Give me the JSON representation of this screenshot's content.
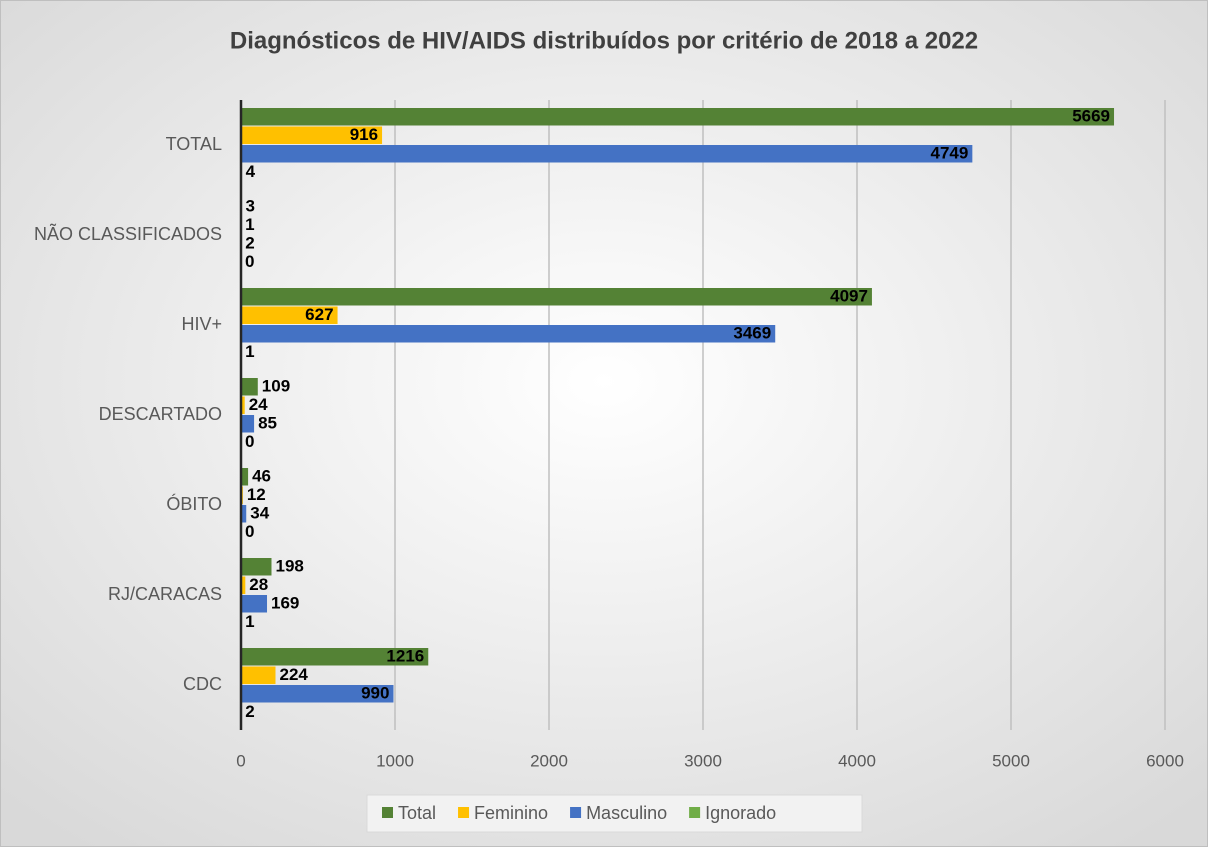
{
  "chart_data": {
    "type": "hbar",
    "title": "Diagnósticos de HIV/AIDS distribuídos por critério de 2018 a 2022",
    "categories": [
      "TOTAL",
      "NÃO CLASSIFICADOS",
      "HIV+",
      "DESCARTADO",
      "ÓBITO",
      "RJ/CARACAS",
      "CDC"
    ],
    "series": [
      {
        "name": "Total",
        "color": "#548235",
        "values": [
          5669,
          3,
          4097,
          109,
          46,
          198,
          1216
        ]
      },
      {
        "name": "Feminino",
        "color": "#ffc000",
        "values": [
          916,
          1,
          627,
          24,
          12,
          28,
          224
        ]
      },
      {
        "name": "Masculino",
        "color": "#4472c4",
        "values": [
          4749,
          2,
          3469,
          85,
          34,
          169,
          990
        ]
      },
      {
        "name": "Ignorado",
        "color": "#70ad47",
        "values": [
          4,
          0,
          1,
          0,
          0,
          1,
          2
        ]
      }
    ],
    "xlim": [
      0,
      6000
    ],
    "xticks": [
      0,
      1000,
      2000,
      3000,
      4000,
      5000,
      6000
    ],
    "grid": true,
    "legend": "bottom"
  }
}
